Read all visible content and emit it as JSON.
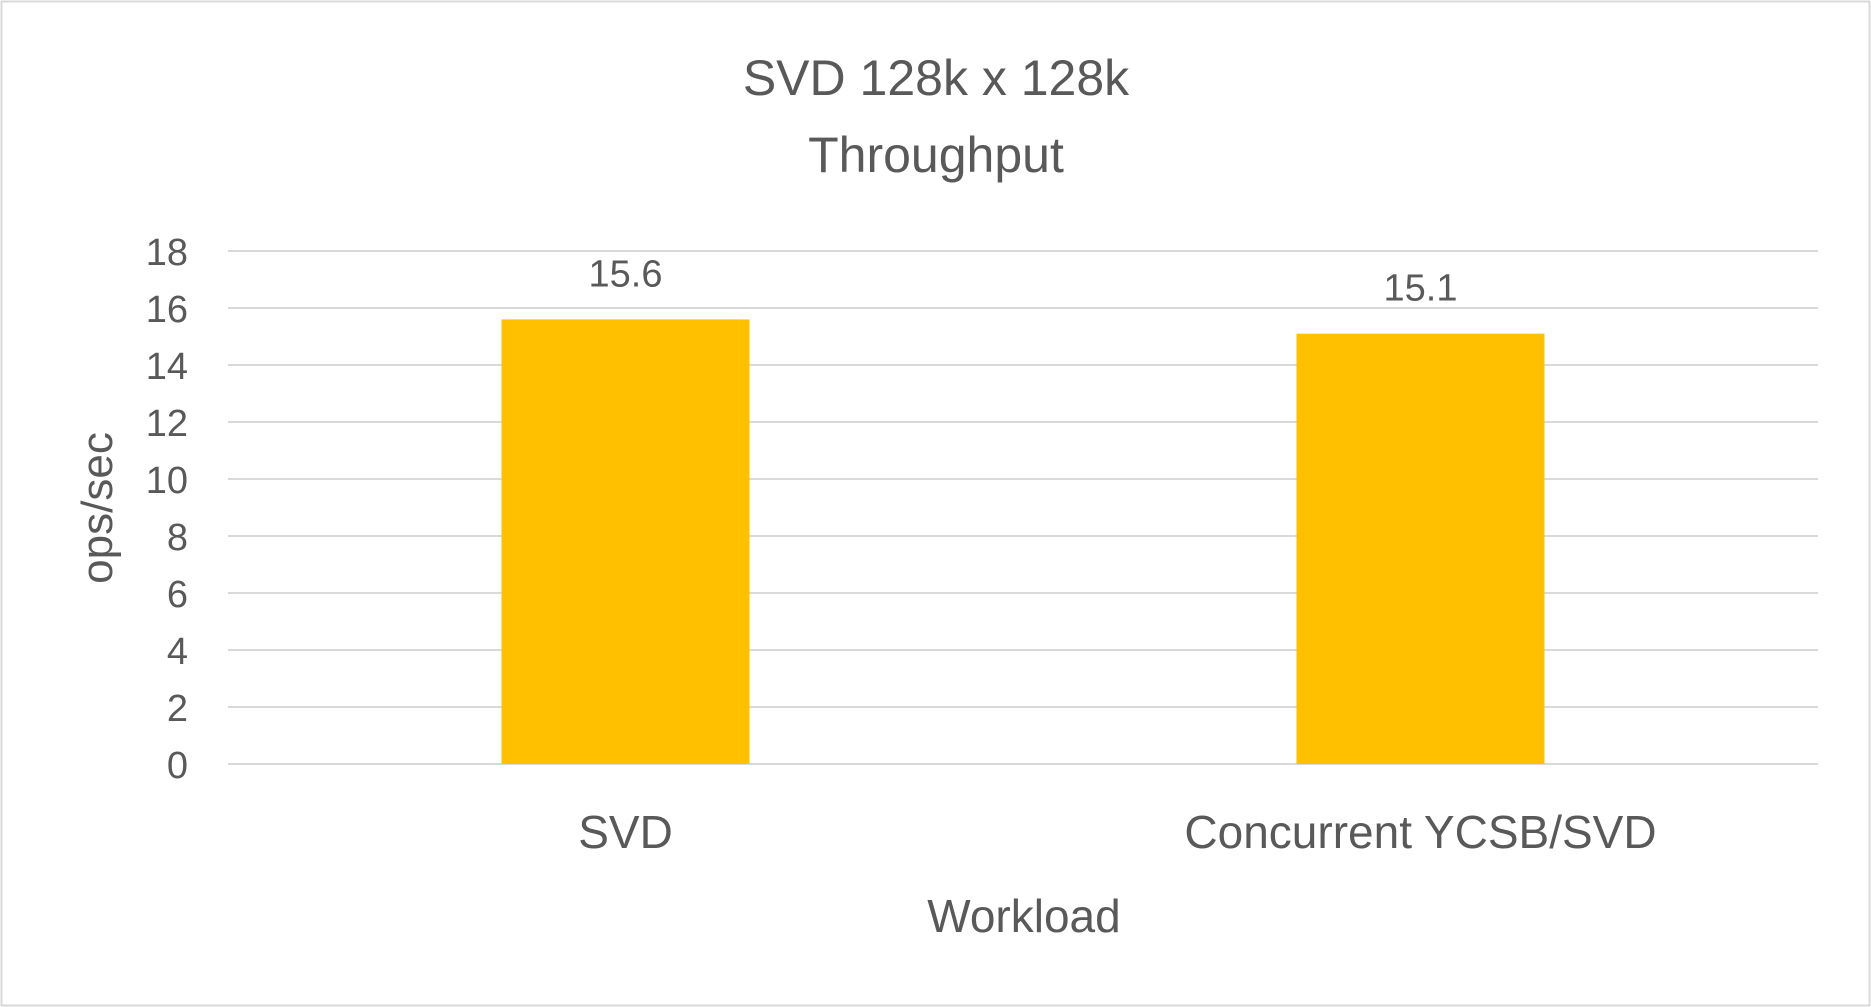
{
  "chart_data": {
    "type": "bar",
    "title_lines": [
      "SVD 128k x 128k",
      "Throughput"
    ],
    "xlabel": "Workload",
    "ylabel": "ops/sec",
    "categories": [
      "SVD",
      "Concurrent YCSB/SVD"
    ],
    "values": [
      15.6,
      15.1
    ],
    "data_labels": [
      "15.6",
      "15.1"
    ],
    "ylim": [
      0,
      18
    ],
    "yticks": [
      0,
      2,
      4,
      6,
      8,
      10,
      12,
      14,
      16,
      18
    ],
    "grid": true,
    "legend": "none",
    "colors": {
      "bar": "#FFC000",
      "grid": "#D9D9D9",
      "text": "#595959",
      "border": "#D9D9D9"
    }
  }
}
